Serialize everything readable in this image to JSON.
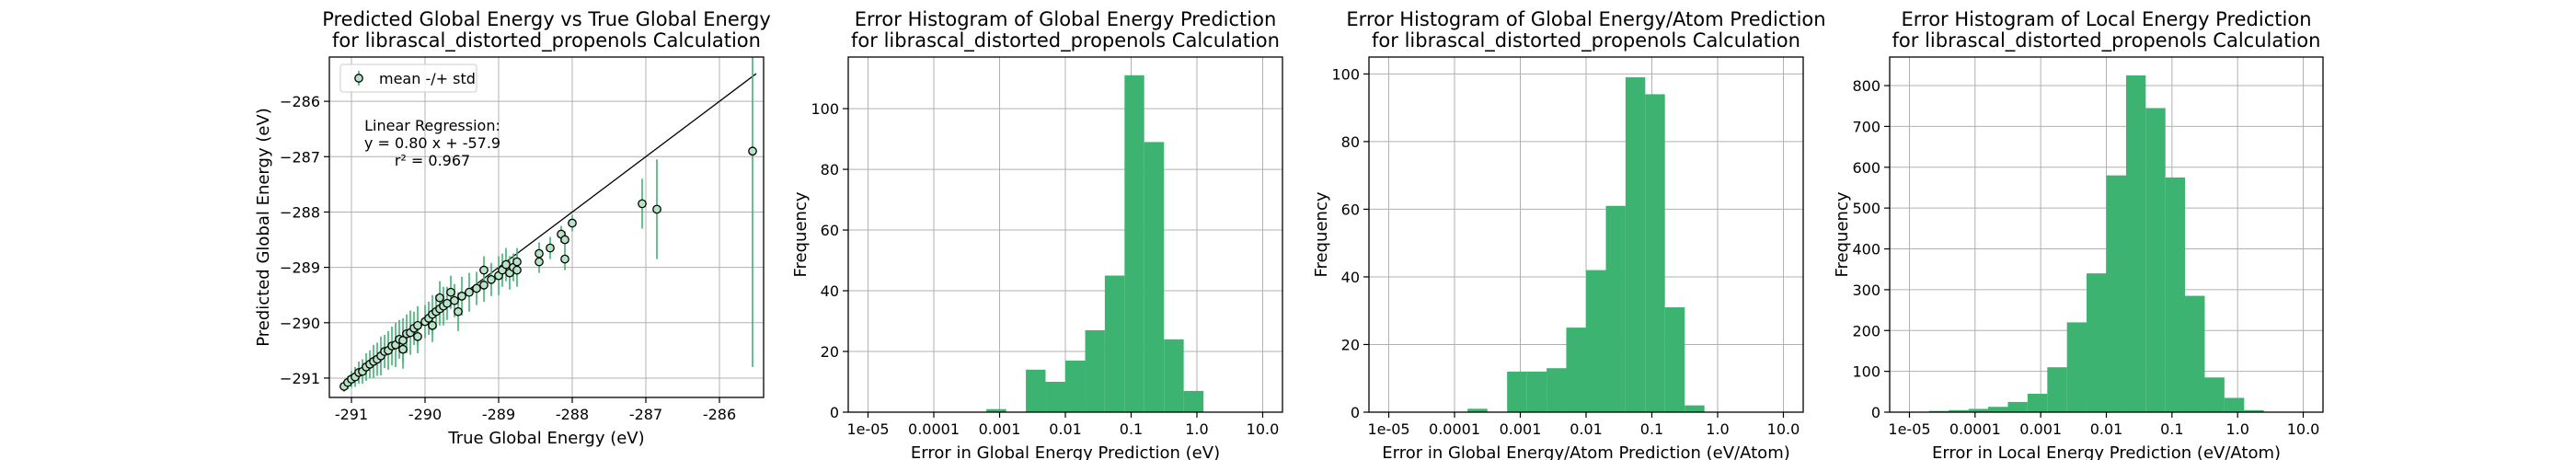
{
  "colors": {
    "accent": "#3cb371",
    "axis": "#000000",
    "grid": "#b0b0b0"
  },
  "chart_data": [
    {
      "type": "scatter",
      "title": "Predicted Global Energy vs True Global Energy\nfor librascal_distorted_propenols Calculation",
      "xlabel": "True Global Energy (eV)",
      "ylabel": "Predicted Global Energy (eV)",
      "xlim": [
        -291.3,
        -285.4
      ],
      "ylim": [
        -291.35,
        -285.2
      ],
      "xticks": [
        -291,
        -290,
        -289,
        -288,
        -287,
        -286
      ],
      "yticks": [
        -291,
        -290,
        -289,
        -288,
        -287,
        -286
      ],
      "grid": true,
      "legend": {
        "position": "top-left",
        "entries": [
          "mean -/+ std"
        ]
      },
      "annotation": [
        "Linear Regression:",
        "y = 0.80 x + -57.9",
        "r² = 0.967"
      ],
      "regression": {
        "slope": 0.8,
        "intercept": -57.9
      },
      "identity_line": {
        "x": [
          -291.1,
          -285.5
        ],
        "y": [
          -291.1,
          -285.5
        ]
      },
      "points": [
        {
          "x": -291.1,
          "y": -291.15,
          "std": 0.1
        },
        {
          "x": -291.05,
          "y": -291.08,
          "std": 0.12
        },
        {
          "x": -291.0,
          "y": -291.02,
          "std": 0.15
        },
        {
          "x": -290.95,
          "y": -290.98,
          "std": 0.18
        },
        {
          "x": -290.9,
          "y": -290.9,
          "std": 0.2
        },
        {
          "x": -290.85,
          "y": -290.88,
          "std": 0.22
        },
        {
          "x": -290.8,
          "y": -290.8,
          "std": 0.25
        },
        {
          "x": -290.75,
          "y": -290.75,
          "std": 0.25
        },
        {
          "x": -290.7,
          "y": -290.7,
          "std": 0.3
        },
        {
          "x": -290.65,
          "y": -290.66,
          "std": 0.3
        },
        {
          "x": -290.6,
          "y": -290.6,
          "std": 0.35
        },
        {
          "x": -290.55,
          "y": -290.52,
          "std": 0.3
        },
        {
          "x": -290.5,
          "y": -290.5,
          "std": 0.35
        },
        {
          "x": -290.45,
          "y": -290.42,
          "std": 0.35
        },
        {
          "x": -290.4,
          "y": -290.4,
          "std": 0.4
        },
        {
          "x": -290.35,
          "y": -290.3,
          "std": 0.35
        },
        {
          "x": -290.3,
          "y": -290.32,
          "std": 0.4
        },
        {
          "x": -290.25,
          "y": -290.2,
          "std": 0.35
        },
        {
          "x": -290.2,
          "y": -290.18,
          "std": 0.4
        },
        {
          "x": -290.15,
          "y": -290.1,
          "std": 0.3
        },
        {
          "x": -290.1,
          "y": -290.05,
          "std": 0.35
        },
        {
          "x": -290.0,
          "y": -289.98,
          "std": 0.3
        },
        {
          "x": -289.95,
          "y": -289.92,
          "std": 0.3
        },
        {
          "x": -289.9,
          "y": -289.85,
          "std": 0.35
        },
        {
          "x": -289.85,
          "y": -289.8,
          "std": 0.3
        },
        {
          "x": -289.8,
          "y": -289.75,
          "std": 0.3
        },
        {
          "x": -289.75,
          "y": -289.7,
          "std": 0.35
        },
        {
          "x": -289.7,
          "y": -289.65,
          "std": 0.3
        },
        {
          "x": -289.6,
          "y": -289.6,
          "std": 0.3
        },
        {
          "x": -289.5,
          "y": -289.52,
          "std": 0.35
        },
        {
          "x": -289.4,
          "y": -289.45,
          "std": 0.35
        },
        {
          "x": -289.3,
          "y": -289.38,
          "std": 0.3
        },
        {
          "x": -289.2,
          "y": -289.32,
          "std": 0.3
        },
        {
          "x": -289.1,
          "y": -289.22,
          "std": 0.3
        },
        {
          "x": -289.0,
          "y": -289.15,
          "std": 0.35
        },
        {
          "x": -288.95,
          "y": -289.05,
          "std": 0.3
        },
        {
          "x": -288.9,
          "y": -288.95,
          "std": 0.3
        },
        {
          "x": -288.85,
          "y": -289.1,
          "std": 0.3
        },
        {
          "x": -288.8,
          "y": -289.0,
          "std": 0.25
        },
        {
          "x": -288.75,
          "y": -288.9,
          "std": 0.25
        },
        {
          "x": -288.75,
          "y": -289.05,
          "std": 0.3
        },
        {
          "x": -290.3,
          "y": -290.48,
          "std": 0.35
        },
        {
          "x": -290.1,
          "y": -290.25,
          "std": 0.3
        },
        {
          "x": -289.9,
          "y": -290.05,
          "std": 0.3
        },
        {
          "x": -289.55,
          "y": -289.8,
          "std": 0.35
        },
        {
          "x": -289.65,
          "y": -289.45,
          "std": 0.3
        },
        {
          "x": -289.8,
          "y": -289.55,
          "std": 0.3
        },
        {
          "x": -289.2,
          "y": -289.05,
          "std": 0.25
        },
        {
          "x": -288.45,
          "y": -288.9,
          "std": 0.2
        },
        {
          "x": -288.45,
          "y": -288.75,
          "std": 0.2
        },
        {
          "x": -288.3,
          "y": -288.65,
          "std": 0.2
        },
        {
          "x": -288.15,
          "y": -288.4,
          "std": 0.15
        },
        {
          "x": -288.1,
          "y": -288.5,
          "std": 0.15
        },
        {
          "x": -288.1,
          "y": -288.85,
          "std": 0.2
        },
        {
          "x": -288.0,
          "y": -288.2,
          "std": 0.15
        },
        {
          "x": -287.05,
          "y": -287.85,
          "std": 0.45
        },
        {
          "x": -286.85,
          "y": -287.95,
          "std": 0.9
        },
        {
          "x": -285.55,
          "y": -286.9,
          "std": 3.9
        }
      ]
    },
    {
      "type": "histogram",
      "title": "Error Histogram of Global Energy Prediction\nfor librascal_distorted_propenols Calculation",
      "xlabel": "Error in Global Energy Prediction (eV)",
      "ylabel": "Frequency",
      "xscale": "log",
      "xlim": [
        5e-06,
        20
      ],
      "ylim": [
        0,
        117
      ],
      "xticks": [
        "1e-05",
        "0.0001",
        "0.001",
        "0.01",
        "0.1",
        "1.0",
        "10.0"
      ],
      "yticks": [
        0,
        20,
        40,
        60,
        80,
        100
      ],
      "grid": true,
      "bin_edges": [
        1e-05,
        1.99e-05,
        3.98e-05,
        7.94e-05,
        0.000158,
        0.000316,
        0.00063,
        0.00126,
        0.00251,
        0.005,
        0.01,
        0.02,
        0.0398,
        0.0794,
        0.158,
        0.316,
        0.63,
        1.26,
        2.51,
        5.0,
        10.0
      ],
      "counts": [
        0,
        0,
        0,
        0,
        0,
        0,
        1,
        0,
        14,
        10,
        17,
        27,
        45,
        111,
        89,
        24,
        7,
        0,
        0,
        0
      ]
    },
    {
      "type": "histogram",
      "title": "Error Histogram of Global Energy/Atom Prediction\nfor librascal_distorted_propenols Calculation",
      "xlabel": "Error in Global Energy/Atom Prediction (eV/Atom)",
      "ylabel": "Frequency",
      "xscale": "log",
      "xlim": [
        5e-06,
        20
      ],
      "ylim": [
        0,
        105
      ],
      "xticks": [
        "1e-05",
        "0.0001",
        "0.001",
        "0.01",
        "0.1",
        "1.0",
        "10.0"
      ],
      "yticks": [
        0,
        20,
        40,
        60,
        80,
        100
      ],
      "grid": true,
      "bin_edges": [
        1e-05,
        1.99e-05,
        3.98e-05,
        7.94e-05,
        0.000158,
        0.000316,
        0.00063,
        0.00126,
        0.00251,
        0.005,
        0.01,
        0.02,
        0.0398,
        0.0794,
        0.158,
        0.316,
        0.63,
        1.26,
        2.51,
        5.0,
        10.0
      ],
      "counts": [
        0,
        0,
        0,
        0,
        1,
        0,
        12,
        12,
        13,
        25,
        42,
        61,
        99,
        94,
        31,
        2,
        0,
        0,
        0,
        0
      ]
    },
    {
      "type": "histogram",
      "title": "Error Histogram of Local Energy Prediction\nfor librascal_distorted_propenols Calculation",
      "xlabel": "Error in Local Energy Prediction (eV/Atom)",
      "ylabel": "Frequency",
      "xscale": "log",
      "xlim": [
        5e-06,
        20
      ],
      "ylim": [
        0,
        870
      ],
      "xticks": [
        "1e-05",
        "0.0001",
        "0.001",
        "0.01",
        "0.1",
        "1.0",
        "10.0"
      ],
      "yticks": [
        0,
        100,
        200,
        300,
        400,
        500,
        600,
        700,
        800
      ],
      "grid": true,
      "bin_edges": [
        1e-05,
        1.99e-05,
        3.98e-05,
        7.94e-05,
        0.000158,
        0.000316,
        0.00063,
        0.00126,
        0.00251,
        0.005,
        0.01,
        0.02,
        0.0398,
        0.0794,
        0.158,
        0.316,
        0.63,
        1.26,
        2.51,
        5.0,
        10.0
      ],
      "counts": [
        1,
        3,
        5,
        8,
        13,
        25,
        45,
        110,
        220,
        340,
        580,
        825,
        745,
        575,
        285,
        85,
        35,
        5,
        0,
        0
      ]
    }
  ]
}
